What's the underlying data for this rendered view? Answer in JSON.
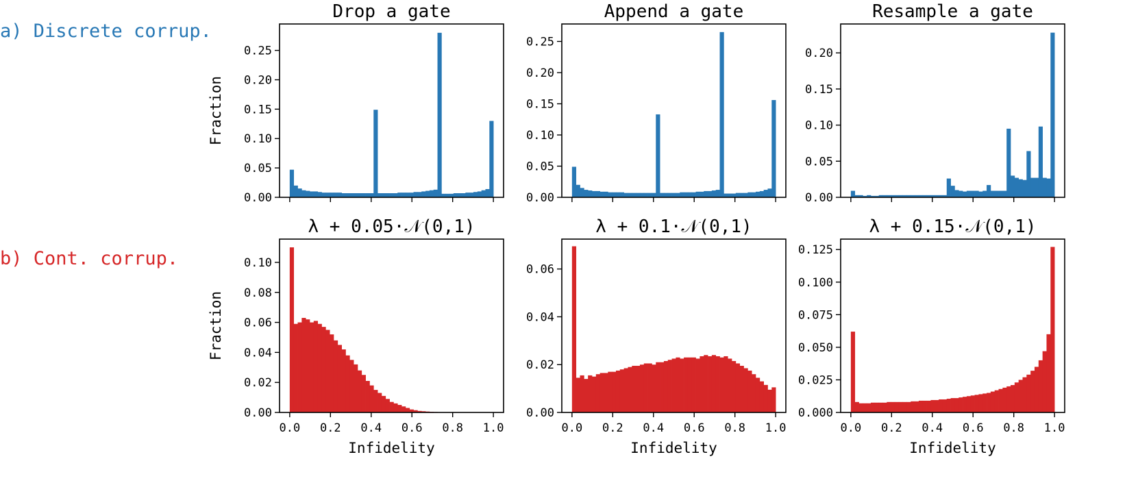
{
  "row_labels": {
    "a": "a) Discrete corrup.",
    "b": "b) Cont. corrup."
  },
  "colors": {
    "discrete": "#2878b5",
    "continuous": "#d62728",
    "axis": "#000000"
  },
  "chart_data": [
    {
      "type": "bar",
      "id": "drop",
      "row": "a",
      "title": "Drop a gate",
      "xlabel": "",
      "ylabel": "Fraction",
      "xlim": [
        -0.05,
        1.05
      ],
      "ylim": [
        0,
        0.295
      ],
      "xticks": [
        0.0,
        0.2,
        0.4,
        0.6,
        0.8,
        1.0
      ],
      "xtick_labels": [
        "",
        "",
        "",
        "",
        "",
        ""
      ],
      "yticks": [
        0.0,
        0.05,
        0.1,
        0.15,
        0.2,
        0.25
      ],
      "ytick_labels": [
        "0.00",
        "0.05",
        "0.10",
        "0.15",
        "0.20",
        "0.25"
      ],
      "bin_edges_range": [
        0,
        1
      ],
      "values": [
        0.047,
        0.02,
        0.015,
        0.012,
        0.011,
        0.01,
        0.01,
        0.009,
        0.008,
        0.008,
        0.008,
        0.008,
        0.008,
        0.007,
        0.007,
        0.007,
        0.007,
        0.007,
        0.007,
        0.007,
        0.007,
        0.149,
        0.007,
        0.007,
        0.007,
        0.007,
        0.007,
        0.008,
        0.008,
        0.008,
        0.008,
        0.009,
        0.009,
        0.01,
        0.011,
        0.012,
        0.013,
        0.28,
        0.006,
        0.006,
        0.006,
        0.007,
        0.007,
        0.007,
        0.008,
        0.008,
        0.009,
        0.01,
        0.012,
        0.014,
        0.13
      ]
    },
    {
      "type": "bar",
      "id": "append",
      "row": "a",
      "title": "Append a gate",
      "xlabel": "",
      "ylabel": "",
      "xlim": [
        -0.05,
        1.05
      ],
      "ylim": [
        0,
        0.278
      ],
      "xticks": [
        0.0,
        0.2,
        0.4,
        0.6,
        0.8,
        1.0
      ],
      "xtick_labels": [
        "",
        "",
        "",
        "",
        "",
        ""
      ],
      "yticks": [
        0.0,
        0.05,
        0.1,
        0.15,
        0.2,
        0.25
      ],
      "ytick_labels": [
        "0.00",
        "0.05",
        "0.10",
        "0.15",
        "0.20",
        "0.25"
      ],
      "bin_edges_range": [
        0,
        1
      ],
      "values": [
        0.049,
        0.02,
        0.015,
        0.012,
        0.011,
        0.01,
        0.01,
        0.009,
        0.009,
        0.008,
        0.008,
        0.008,
        0.008,
        0.007,
        0.007,
        0.007,
        0.007,
        0.007,
        0.007,
        0.007,
        0.007,
        0.133,
        0.007,
        0.007,
        0.007,
        0.007,
        0.007,
        0.008,
        0.008,
        0.008,
        0.008,
        0.009,
        0.009,
        0.01,
        0.01,
        0.011,
        0.012,
        0.265,
        0.006,
        0.006,
        0.006,
        0.007,
        0.007,
        0.007,
        0.008,
        0.008,
        0.009,
        0.01,
        0.012,
        0.014,
        0.156
      ]
    },
    {
      "type": "bar",
      "id": "resample",
      "row": "a",
      "title": "Resample a gate",
      "xlabel": "",
      "ylabel": "",
      "xlim": [
        -0.05,
        1.05
      ],
      "ylim": [
        0,
        0.24
      ],
      "xticks": [
        0.0,
        0.2,
        0.4,
        0.6,
        0.8,
        1.0
      ],
      "xtick_labels": [
        "",
        "",
        "",
        "",
        "",
        ""
      ],
      "yticks": [
        0.0,
        0.05,
        0.1,
        0.15,
        0.2
      ],
      "ytick_labels": [
        "0.00",
        "0.05",
        "0.10",
        "0.15",
        "0.20"
      ],
      "bin_edges_range": [
        0,
        1
      ],
      "values": [
        0.009,
        0.003,
        0.003,
        0.002,
        0.003,
        0.002,
        0.002,
        0.003,
        0.003,
        0.003,
        0.003,
        0.003,
        0.003,
        0.003,
        0.003,
        0.003,
        0.003,
        0.003,
        0.003,
        0.003,
        0.003,
        0.003,
        0.003,
        0.003,
        0.026,
        0.016,
        0.01,
        0.009,
        0.008,
        0.009,
        0.009,
        0.009,
        0.008,
        0.009,
        0.017,
        0.009,
        0.009,
        0.009,
        0.009,
        0.095,
        0.03,
        0.027,
        0.025,
        0.024,
        0.064,
        0.027,
        0.027,
        0.098,
        0.027,
        0.026,
        0.228
      ]
    },
    {
      "type": "bar",
      "id": "noise005",
      "row": "b",
      "title": "λ + 0.05·𝒩(0,1)",
      "xlabel": "Infidelity",
      "ylabel": "Fraction",
      "xlim": [
        -0.05,
        1.05
      ],
      "ylim": [
        0,
        0.1155
      ],
      "xticks": [
        0.0,
        0.2,
        0.4,
        0.6,
        0.8,
        1.0
      ],
      "xtick_labels": [
        "0.0",
        "0.2",
        "0.4",
        "0.6",
        "0.8",
        "1.0"
      ],
      "yticks": [
        0.0,
        0.02,
        0.04,
        0.06,
        0.08,
        0.1
      ],
      "ytick_labels": [
        "0.00",
        "0.02",
        "0.04",
        "0.06",
        "0.08",
        "0.10"
      ],
      "bin_edges_range": [
        0,
        1
      ],
      "values": [
        0.11,
        0.059,
        0.06,
        0.063,
        0.062,
        0.06,
        0.061,
        0.059,
        0.057,
        0.055,
        0.052,
        0.048,
        0.045,
        0.042,
        0.038,
        0.035,
        0.032,
        0.028,
        0.025,
        0.021,
        0.018,
        0.015,
        0.013,
        0.011,
        0.009,
        0.007,
        0.006,
        0.005,
        0.004,
        0.003,
        0.002,
        0.0015,
        0.001,
        0.0008,
        0.0006,
        0.0004,
        0.0003,
        0.0002,
        0.0001,
        0.0001,
        0.0001,
        0,
        0,
        0,
        0,
        0,
        0,
        0,
        0,
        0,
        0
      ]
    },
    {
      "type": "bar",
      "id": "noise01",
      "row": "b",
      "title": "λ + 0.1·𝒩(0,1)",
      "xlabel": "Infidelity",
      "ylabel": "",
      "xlim": [
        -0.05,
        1.05
      ],
      "ylim": [
        0,
        0.0725
      ],
      "xticks": [
        0.0,
        0.2,
        0.4,
        0.6,
        0.8,
        1.0
      ],
      "xtick_labels": [
        "0.0",
        "0.2",
        "0.4",
        "0.6",
        "0.8",
        "1.0"
      ],
      "yticks": [
        0.0,
        0.02,
        0.04,
        0.06
      ],
      "ytick_labels": [
        "0.00",
        "0.02",
        "0.04",
        "0.06"
      ],
      "bin_edges_range": [
        0,
        1
      ],
      "values": [
        0.0695,
        0.0145,
        0.0155,
        0.014,
        0.0155,
        0.015,
        0.016,
        0.0165,
        0.0165,
        0.017,
        0.017,
        0.0175,
        0.018,
        0.0185,
        0.019,
        0.0195,
        0.0195,
        0.02,
        0.0205,
        0.0205,
        0.02,
        0.021,
        0.021,
        0.0215,
        0.022,
        0.0225,
        0.023,
        0.0225,
        0.023,
        0.023,
        0.023,
        0.0225,
        0.0235,
        0.024,
        0.0235,
        0.024,
        0.0235,
        0.023,
        0.0235,
        0.0225,
        0.0215,
        0.0205,
        0.0195,
        0.0185,
        0.0175,
        0.016,
        0.0145,
        0.013,
        0.0115,
        0.0095,
        0.0105
      ]
    },
    {
      "type": "bar",
      "id": "noise015",
      "row": "b",
      "title": "λ + 0.15·𝒩(0,1)",
      "xlabel": "Infidelity",
      "ylabel": "",
      "xlim": [
        -0.05,
        1.05
      ],
      "ylim": [
        0,
        0.133
      ],
      "xticks": [
        0.0,
        0.2,
        0.4,
        0.6,
        0.8,
        1.0
      ],
      "xtick_labels": [
        "0.0",
        "0.2",
        "0.4",
        "0.6",
        "0.8",
        "1.0"
      ],
      "yticks": [
        0.0,
        0.025,
        0.05,
        0.075,
        0.1,
        0.125
      ],
      "ytick_labels": [
        "0.000",
        "0.025",
        "0.050",
        "0.075",
        "0.100",
        "0.125"
      ],
      "bin_edges_range": [
        0,
        1
      ],
      "values": [
        0.062,
        0.008,
        0.007,
        0.007,
        0.007,
        0.0075,
        0.0075,
        0.0075,
        0.0075,
        0.008,
        0.008,
        0.008,
        0.008,
        0.008,
        0.008,
        0.0085,
        0.0085,
        0.009,
        0.009,
        0.009,
        0.0095,
        0.0095,
        0.01,
        0.01,
        0.0105,
        0.011,
        0.011,
        0.0115,
        0.012,
        0.0125,
        0.013,
        0.0135,
        0.014,
        0.0145,
        0.015,
        0.016,
        0.017,
        0.018,
        0.019,
        0.02,
        0.021,
        0.023,
        0.025,
        0.027,
        0.029,
        0.032,
        0.035,
        0.04,
        0.047,
        0.06,
        0.127
      ]
    }
  ]
}
